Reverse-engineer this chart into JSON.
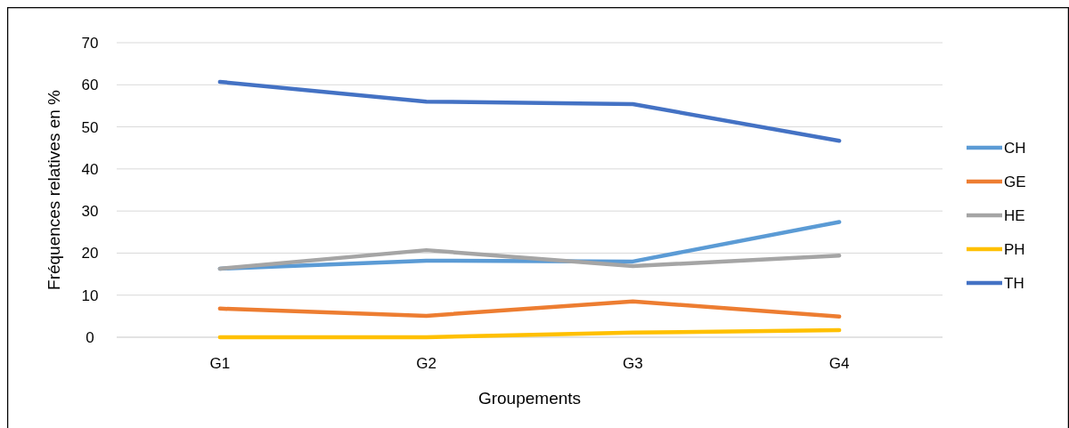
{
  "chart_data": {
    "type": "line",
    "xlabel": "Groupements",
    "ylabel": "Fréquences relatives en %",
    "categories": [
      "G1",
      "G2",
      "G3",
      "G4"
    ],
    "series": [
      {
        "name": "CH",
        "color": "#5b9bd5",
        "values": [
          16.3,
          18.2,
          18.0,
          27.4
        ]
      },
      {
        "name": "GE",
        "color": "#ed7d31",
        "values": [
          6.8,
          5.1,
          8.5,
          4.9
        ]
      },
      {
        "name": "HE",
        "color": "#a5a5a5",
        "values": [
          16.3,
          20.7,
          16.9,
          19.4
        ]
      },
      {
        "name": "PH",
        "color": "#ffc000",
        "values": [
          0,
          0,
          1.1,
          1.7
        ]
      },
      {
        "name": "TH",
        "color": "#4472c4",
        "values": [
          60.7,
          56.0,
          55.4,
          46.7
        ]
      }
    ],
    "ylim": [
      0,
      70
    ],
    "yticks": [
      0,
      10,
      20,
      30,
      40,
      50,
      60,
      70
    ],
    "grid": "y",
    "legend": "right",
    "marker": "none",
    "line_style": "solid"
  }
}
